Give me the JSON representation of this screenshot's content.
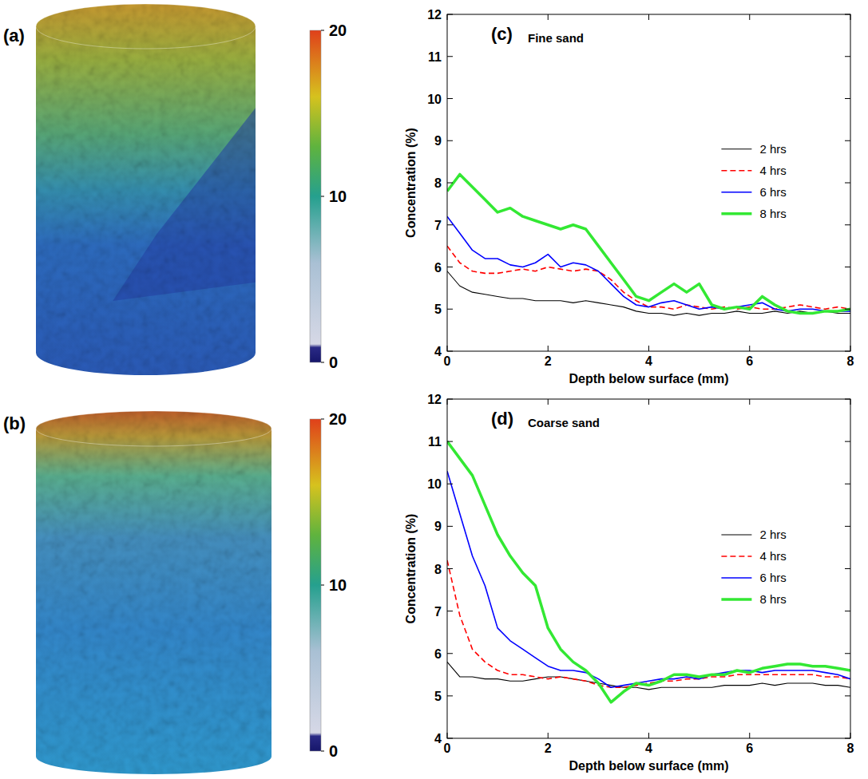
{
  "chart_data": [
    {
      "type": "volume",
      "panel": "(a)",
      "colorbar_range": [
        0,
        20
      ],
      "colorbar_ticks": [
        0,
        10,
        20
      ]
    },
    {
      "type": "volume",
      "panel": "(b)",
      "colorbar_range": [
        0,
        20
      ],
      "colorbar_ticks": [
        0,
        10,
        20
      ]
    },
    {
      "type": "line",
      "panel": "(c)",
      "title": "Fine sand",
      "x_label": "Depth below surface (mm)",
      "y_label": "Concentration (%)",
      "x": [
        0,
        0.25,
        0.5,
        0.75,
        1,
        1.25,
        1.5,
        1.75,
        2,
        2.25,
        2.5,
        2.75,
        3,
        3.25,
        3.5,
        3.75,
        4,
        4.25,
        4.5,
        4.75,
        5,
        5.25,
        5.5,
        5.75,
        6,
        6.25,
        6.5,
        6.75,
        7,
        7.25,
        7.5,
        7.75,
        8
      ],
      "series": [
        {
          "name": "2 hrs",
          "color": "#000000",
          "line_style": "solid",
          "values": [
            5.9,
            5.55,
            5.4,
            5.35,
            5.3,
            5.25,
            5.25,
            5.2,
            5.2,
            5.2,
            5.15,
            5.2,
            5.15,
            5.1,
            5.05,
            4.95,
            4.9,
            4.9,
            4.85,
            4.9,
            4.85,
            4.9,
            4.9,
            4.95,
            4.9,
            4.9,
            4.95,
            4.9,
            4.95,
            4.9,
            4.95,
            4.9,
            4.9
          ]
        },
        {
          "name": "4 hrs",
          "color": "#ff0000",
          "line_style": "dashed",
          "values": [
            6.5,
            6.1,
            5.9,
            5.85,
            5.85,
            5.9,
            5.95,
            5.9,
            6.0,
            5.95,
            5.9,
            5.95,
            5.9,
            5.7,
            5.4,
            5.2,
            5.05,
            5.05,
            5.0,
            5.1,
            5.05,
            5.0,
            5.05,
            5.0,
            5.05,
            5.0,
            5.0,
            5.05,
            5.1,
            5.05,
            5.0,
            5.05,
            5.0
          ]
        },
        {
          "name": "6 hrs",
          "color": "#0000ff",
          "line_style": "solid",
          "values": [
            7.2,
            6.8,
            6.4,
            6.2,
            6.2,
            6.05,
            6.0,
            6.1,
            6.3,
            6.0,
            6.1,
            6.05,
            5.9,
            5.6,
            5.3,
            5.1,
            5.05,
            5.15,
            5.2,
            5.1,
            5.0,
            5.05,
            5.0,
            5.05,
            5.1,
            5.15,
            5.0,
            4.95,
            5.0,
            5.0,
            4.95,
            4.95,
            4.95
          ]
        },
        {
          "name": "8 hrs",
          "color": "#33e833",
          "line_style": "solid",
          "values": [
            7.8,
            8.2,
            7.9,
            7.6,
            7.3,
            7.4,
            7.2,
            7.1,
            7.0,
            6.9,
            7.0,
            6.9,
            6.5,
            6.1,
            5.7,
            5.3,
            5.2,
            5.4,
            5.6,
            5.4,
            5.6,
            5.1,
            5.0,
            5.05,
            5.0,
            5.3,
            5.1,
            4.95,
            4.9,
            4.9,
            4.95,
            4.95,
            5.0
          ]
        }
      ],
      "xlim": [
        0,
        8
      ],
      "xticks": [
        0,
        2,
        4,
        6,
        8
      ],
      "ylim": [
        4,
        12
      ],
      "yticks": [
        4,
        5,
        6,
        7,
        8,
        9,
        10,
        11,
        12
      ],
      "legend": "right",
      "grid": false
    },
    {
      "type": "line",
      "panel": "(d)",
      "title": "Coarse sand",
      "x_label": "Depth below surface (mm)",
      "y_label": "Concentration (%)",
      "x": [
        0,
        0.25,
        0.5,
        0.75,
        1,
        1.25,
        1.5,
        1.75,
        2,
        2.25,
        2.5,
        2.75,
        3,
        3.25,
        3.5,
        3.75,
        4,
        4.25,
        4.5,
        4.75,
        5,
        5.25,
        5.5,
        5.75,
        6,
        6.25,
        6.5,
        6.75,
        7,
        7.25,
        7.5,
        7.75,
        8
      ],
      "series": [
        {
          "name": "2 hrs",
          "color": "#000000",
          "line_style": "solid",
          "values": [
            5.8,
            5.45,
            5.45,
            5.4,
            5.4,
            5.35,
            5.35,
            5.4,
            5.45,
            5.45,
            5.4,
            5.35,
            5.3,
            5.25,
            5.2,
            5.2,
            5.15,
            5.2,
            5.2,
            5.2,
            5.2,
            5.2,
            5.25,
            5.25,
            5.25,
            5.3,
            5.25,
            5.3,
            5.3,
            5.3,
            5.25,
            5.25,
            5.2
          ]
        },
        {
          "name": "4 hrs",
          "color": "#ff0000",
          "line_style": "dashed",
          "values": [
            8.2,
            6.9,
            6.1,
            5.8,
            5.6,
            5.5,
            5.5,
            5.45,
            5.4,
            5.45,
            5.4,
            5.35,
            5.25,
            5.2,
            5.2,
            5.25,
            5.3,
            5.35,
            5.35,
            5.4,
            5.4,
            5.45,
            5.45,
            5.5,
            5.5,
            5.5,
            5.5,
            5.5,
            5.5,
            5.5,
            5.45,
            5.45,
            5.4
          ]
        },
        {
          "name": "6 hrs",
          "color": "#0000ff",
          "line_style": "solid",
          "values": [
            10.3,
            9.3,
            8.3,
            7.6,
            6.6,
            6.3,
            6.1,
            5.9,
            5.7,
            5.6,
            5.6,
            5.55,
            5.4,
            5.2,
            5.25,
            5.3,
            5.35,
            5.4,
            5.4,
            5.45,
            5.4,
            5.5,
            5.55,
            5.6,
            5.6,
            5.55,
            5.6,
            5.6,
            5.6,
            5.6,
            5.55,
            5.5,
            5.4
          ]
        },
        {
          "name": "8 hrs",
          "color": "#33e833",
          "line_style": "solid",
          "values": [
            11.0,
            10.6,
            10.2,
            9.5,
            8.8,
            8.3,
            7.9,
            7.6,
            6.6,
            6.1,
            5.8,
            5.6,
            5.3,
            4.85,
            5.1,
            5.3,
            5.25,
            5.35,
            5.5,
            5.5,
            5.45,
            5.5,
            5.5,
            5.6,
            5.55,
            5.65,
            5.7,
            5.75,
            5.75,
            5.7,
            5.7,
            5.65,
            5.6
          ]
        }
      ],
      "xlim": [
        0,
        8
      ],
      "xticks": [
        0,
        2,
        4,
        6,
        8
      ],
      "ylim": [
        4,
        12
      ],
      "yticks": [
        4,
        5,
        6,
        7,
        8,
        9,
        10,
        11,
        12
      ],
      "legend": "right",
      "grid": false
    }
  ]
}
